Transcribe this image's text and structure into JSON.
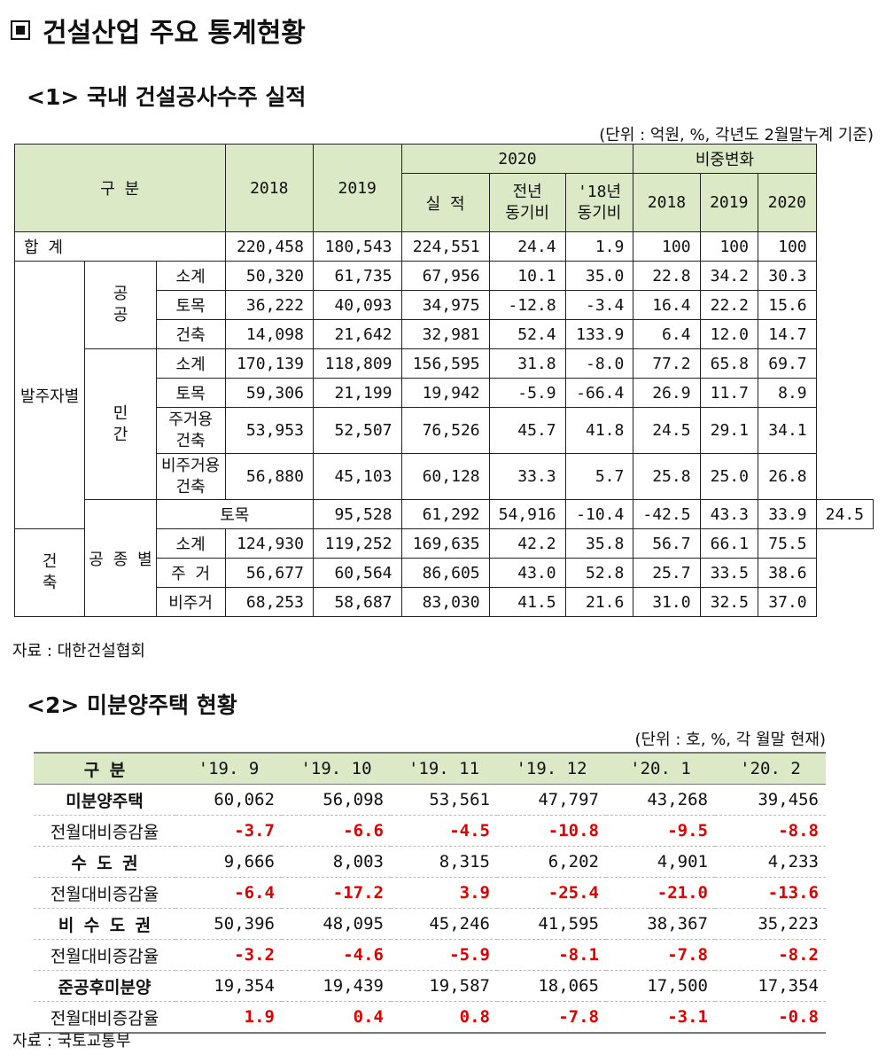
{
  "title": "건설산업 주요 통계현황",
  "section1": {
    "heading": "<1> 국내 건설공사수주 실적",
    "unit": "(단위 : 억원, %, 각년도 2월말누계 기준)",
    "source": "자료 : 대한건설협회",
    "header": {
      "gubun": "구 분",
      "y2018": "2018",
      "y2019": "2019",
      "y2020": "2020",
      "share": "비중변화",
      "actual": "실 적",
      "yoy1": "전년",
      "yoy2": "동기비",
      "vs18a": "'18년",
      "vs18b": "동기비",
      "s2018": "2018",
      "s2019": "2019",
      "s2020": "2020"
    },
    "labels": {
      "total": "합 계",
      "by_client": "발주자별",
      "public1": "공",
      "public2": "공",
      "private1": "민",
      "private2": "간",
      "by_type": "공 종 별",
      "bld1": "건",
      "bld2": "축",
      "civil_top": "토목"
    },
    "rows": [
      {
        "label": "",
        "v": [
          "220,458",
          "180,543",
          "224,551",
          "24.4",
          "1.9",
          "100",
          "100",
          "100"
        ]
      },
      {
        "label": "소계",
        "v": [
          "50,320",
          "61,735",
          "67,956",
          "10.1",
          "35.0",
          "22.8",
          "34.2",
          "30.3"
        ]
      },
      {
        "label": "토목",
        "v": [
          "36,222",
          "40,093",
          "34,975",
          "-12.8",
          "-3.4",
          "16.4",
          "22.2",
          "15.6"
        ]
      },
      {
        "label": "건축",
        "v": [
          "14,098",
          "21,642",
          "32,981",
          "52.4",
          "133.9",
          "6.4",
          "12.0",
          "14.7"
        ]
      },
      {
        "label": "소계",
        "v": [
          "170,139",
          "118,809",
          "156,595",
          "31.8",
          "-8.0",
          "77.2",
          "65.8",
          "69.7"
        ]
      },
      {
        "label": "토목",
        "v": [
          "59,306",
          "21,199",
          "19,942",
          "-5.9",
          "-66.4",
          "26.9",
          "11.7",
          "8.9"
        ]
      },
      {
        "label": "주거용",
        "label2": "건축",
        "v": [
          "53,953",
          "52,507",
          "76,526",
          "45.7",
          "41.8",
          "24.5",
          "29.1",
          "34.1"
        ]
      },
      {
        "label": "비주거용",
        "label2": "건축",
        "v": [
          "56,880",
          "45,103",
          "60,128",
          "33.3",
          "5.7",
          "25.8",
          "25.0",
          "26.8"
        ]
      },
      {
        "label": "",
        "v": [
          "95,528",
          "61,292",
          "54,916",
          "-10.4",
          "-42.5",
          "43.3",
          "33.9",
          "24.5"
        ]
      },
      {
        "label": "소계",
        "v": [
          "124,930",
          "119,252",
          "169,635",
          "42.2",
          "35.8",
          "56.7",
          "66.1",
          "75.5"
        ]
      },
      {
        "label": "주 거",
        "v": [
          "56,677",
          "60,564",
          "86,605",
          "43.0",
          "52.8",
          "25.7",
          "33.5",
          "38.6"
        ]
      },
      {
        "label": "비주거",
        "v": [
          "68,253",
          "58,687",
          "83,030",
          "41.5",
          "21.6",
          "31.0",
          "32.5",
          "37.0"
        ]
      }
    ]
  },
  "section2": {
    "heading": "<2> 미분양주택 현황",
    "unit": "(단위 : 호, %, 각 월말 현재)",
    "source": "자료 : 국토교통부",
    "header": [
      "구 분",
      "'19. 9",
      "'19. 10",
      "'19. 11",
      "'19. 12",
      "'20. 1",
      "'20. 2"
    ],
    "rows": [
      {
        "label": "미분양주택",
        "v": [
          "60,062",
          "56,098",
          "53,561",
          "47,797",
          "43,268",
          "39,456"
        ]
      },
      {
        "label": "전월대비증감율",
        "v": [
          "-3.7",
          "-6.6",
          "-4.5",
          "-10.8",
          "-9.5",
          "-8.8"
        ]
      },
      {
        "label": "수 도 권",
        "v": [
          "9,666",
          "8,003",
          "8,315",
          "6,202",
          "4,901",
          "4,233"
        ]
      },
      {
        "label": "전월대비증감율",
        "v": [
          "-6.4",
          "-17.2",
          "3.9",
          "-25.4",
          "-21.0",
          "-13.6"
        ]
      },
      {
        "label": "비 수 도 권",
        "v": [
          "50,396",
          "48,095",
          "45,246",
          "41,595",
          "38,367",
          "35,223"
        ]
      },
      {
        "label": "전월대비증감율",
        "v": [
          "-3.2",
          "-4.6",
          "-5.9",
          "-8.1",
          "-7.8",
          "-8.2"
        ]
      },
      {
        "label": "준공후미분양",
        "v": [
          "19,354",
          "19,439",
          "19,587",
          "18,065",
          "17,500",
          "17,354"
        ]
      },
      {
        "label": "전월대비증감율",
        "v": [
          "1.9",
          "0.4",
          "0.8",
          "-7.8",
          "-3.1",
          "-0.8"
        ]
      }
    ]
  }
}
